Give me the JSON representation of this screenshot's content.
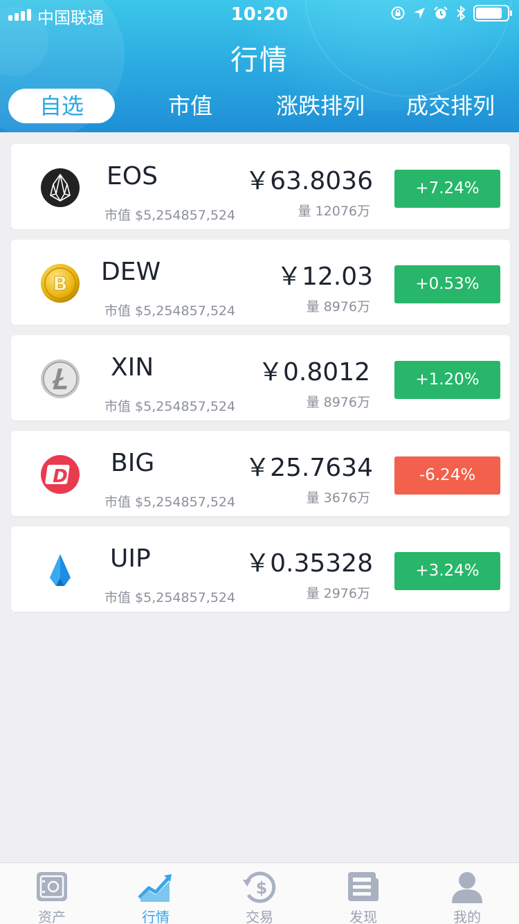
{
  "status": {
    "carrier": "中国联通",
    "time": "10:20",
    "battery_level": 0.85
  },
  "header": {
    "title": "行情",
    "tabs": [
      {
        "label": "自选",
        "active": true
      },
      {
        "label": "市值",
        "active": false
      },
      {
        "label": "涨跌排列",
        "active": false
      },
      {
        "label": "成交排列",
        "active": false
      }
    ]
  },
  "coins": [
    {
      "name": "EOS",
      "icon": "eos-icon",
      "price": "￥63.8036",
      "cap": "市值 $5,254857,524",
      "volume": "量 12076万",
      "change": "+7.24%",
      "trend": "up"
    },
    {
      "name": "DEW",
      "icon": "bitcoin-gold-icon",
      "price": "￥12.03",
      "cap": "市值 $5,254857,524",
      "volume": "量 8976万",
      "change": "+0.53%",
      "trend": "up"
    },
    {
      "name": "XIN",
      "icon": "litecoin-icon",
      "price": "￥0.8012",
      "cap": "市值 $5,254857,524",
      "volume": "量 8976万",
      "change": "+1.20%",
      "trend": "up"
    },
    {
      "name": "BIG",
      "icon": "red-d-icon",
      "price": "￥25.7634",
      "cap": "市值 $5,254857,524",
      "volume": "量 3676万",
      "change": "-6.24%",
      "trend": "down"
    },
    {
      "name": "UIP",
      "icon": "blue-crystal-icon",
      "price": "￥0.35328",
      "cap": "市值 $5,254857,524",
      "volume": "量 2976万",
      "change": "+3.24%",
      "trend": "up"
    }
  ],
  "tabbar": [
    {
      "label": "资产",
      "icon": "safe-icon",
      "active": false
    },
    {
      "label": "行情",
      "icon": "chart-trend-icon",
      "active": true
    },
    {
      "label": "交易",
      "icon": "exchange-dollar-icon",
      "active": false
    },
    {
      "label": "发现",
      "icon": "news-icon",
      "active": false
    },
    {
      "label": "我的",
      "icon": "user-icon",
      "active": false
    }
  ],
  "colors": {
    "accent": "#3aa6e3",
    "up": "#27b66a",
    "down": "#f3604c",
    "inactive": "#9aa3b3"
  }
}
